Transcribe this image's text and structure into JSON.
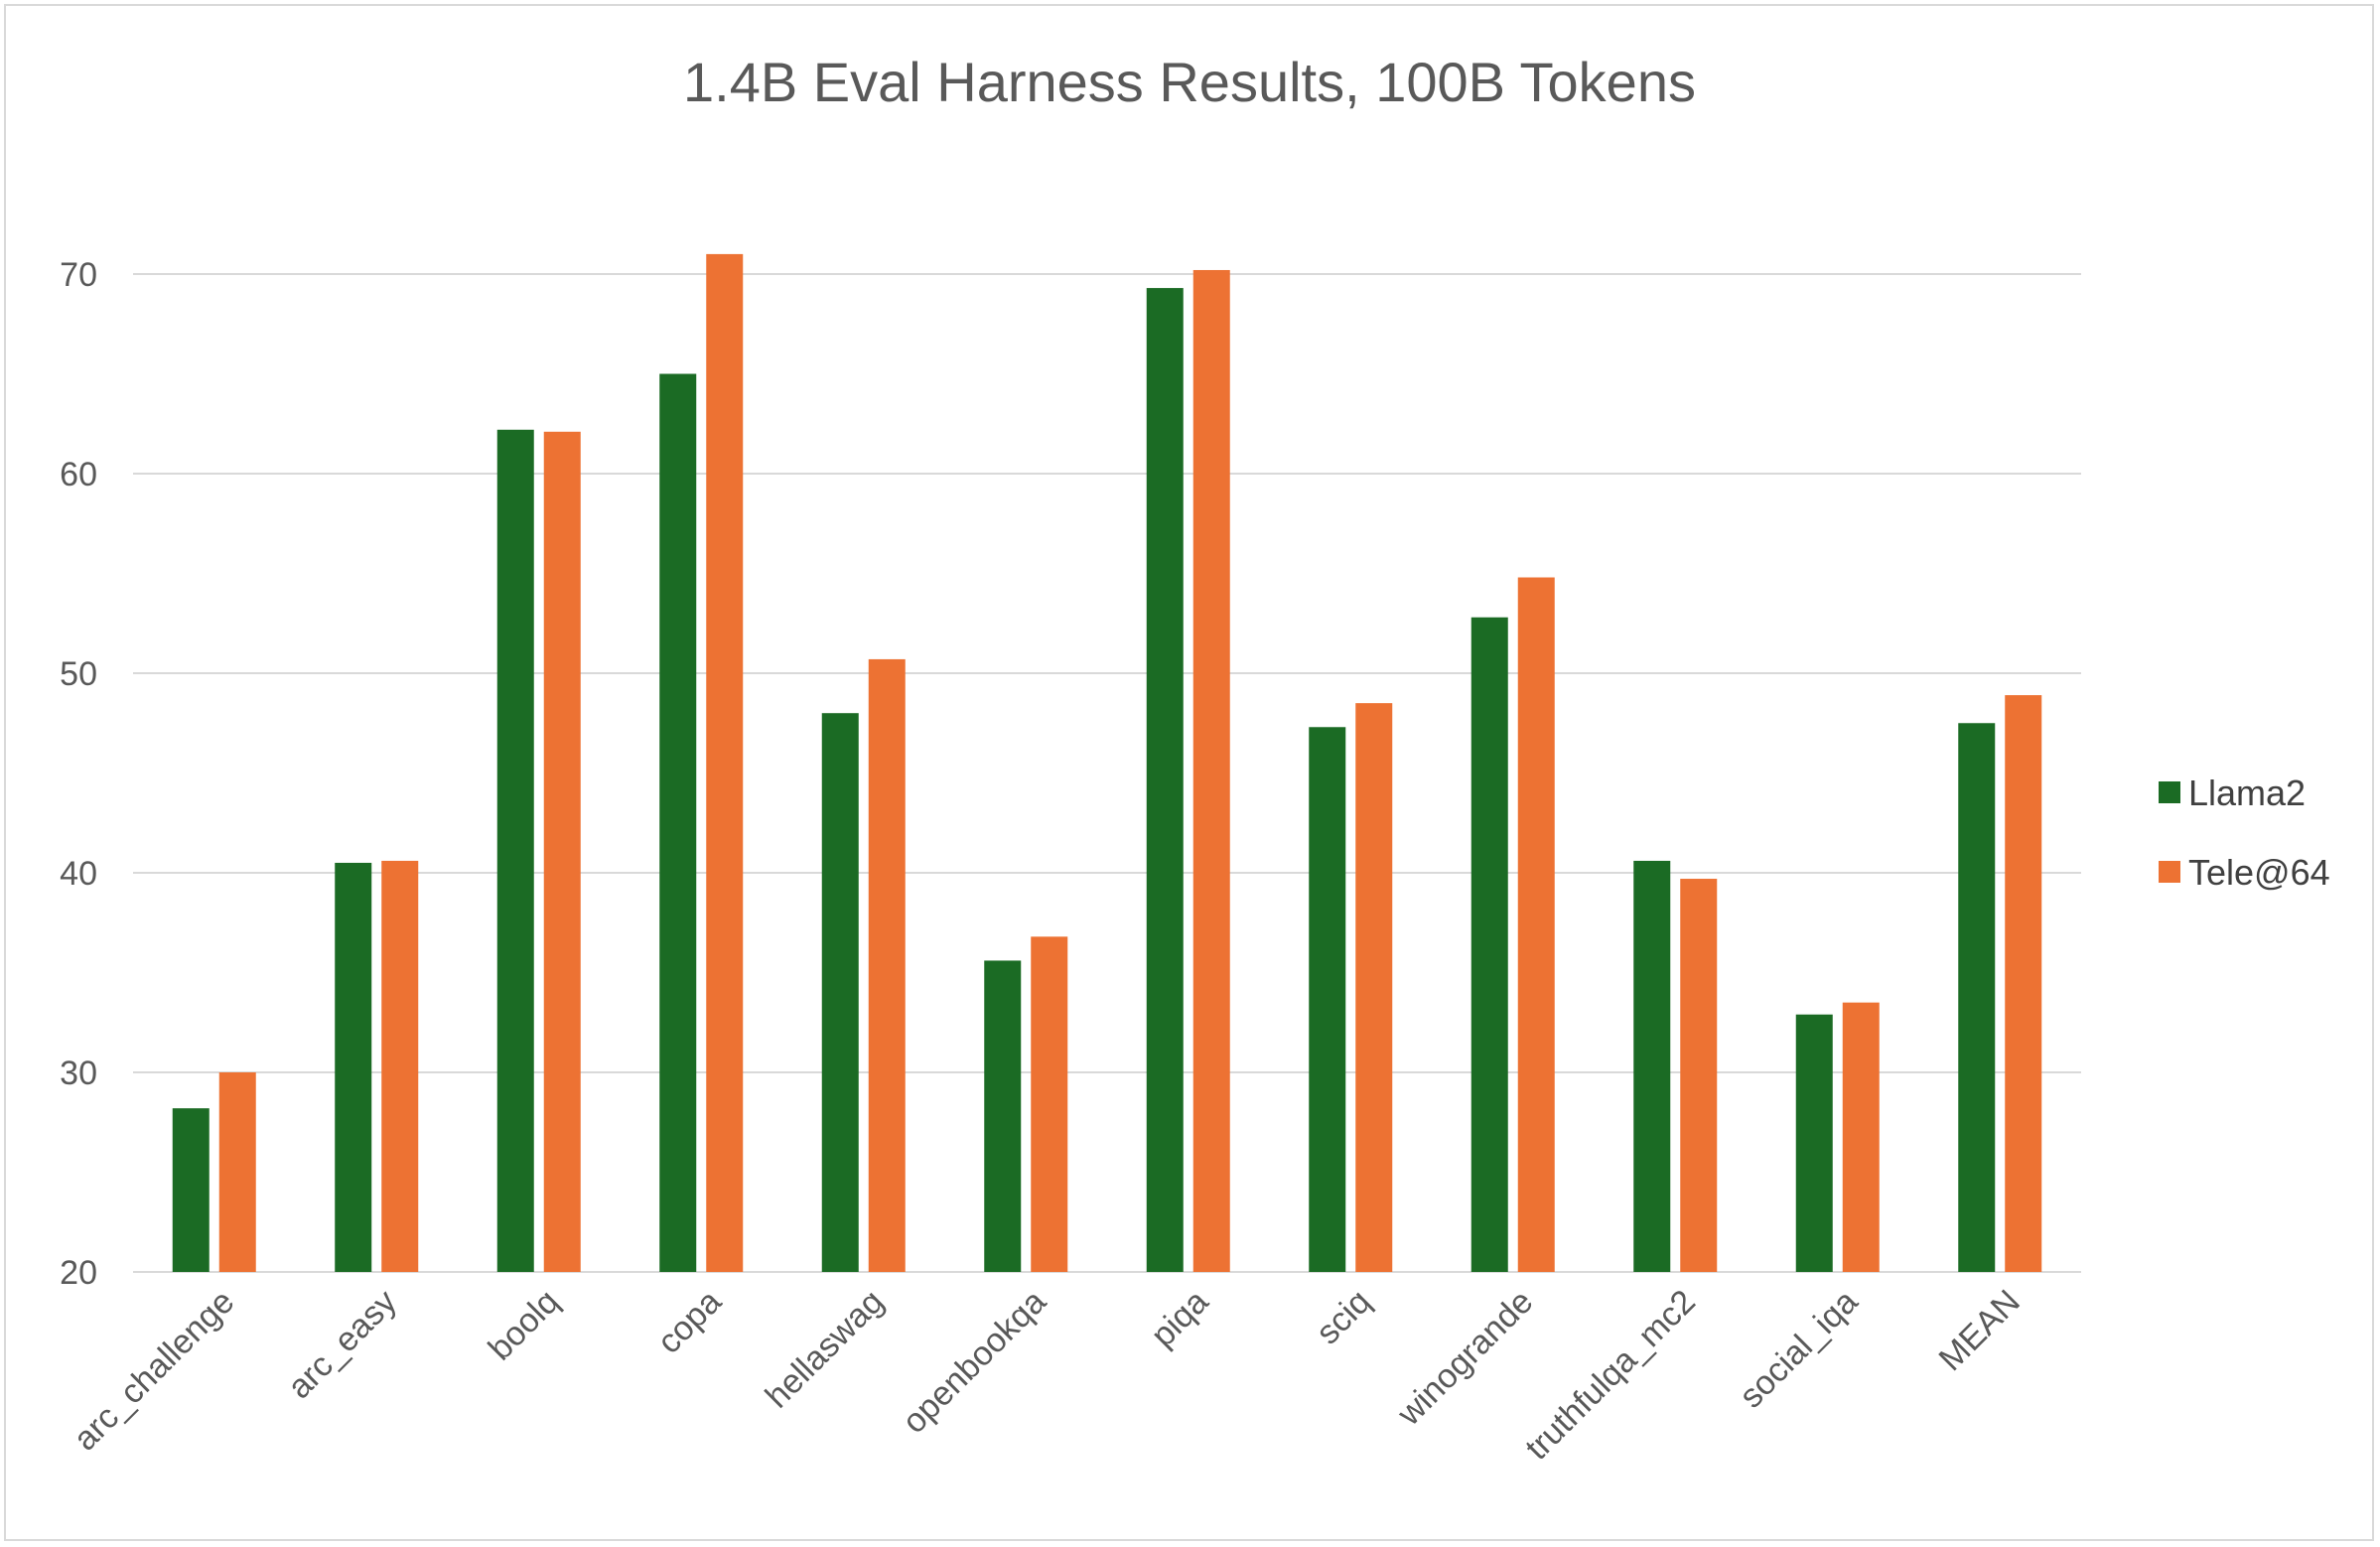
{
  "chart_data": {
    "type": "bar",
    "title": "1.4B Eval Harness Results, 100B Tokens",
    "xlabel": "",
    "ylabel": "",
    "ylim": [
      20,
      70
    ],
    "yticks": [
      20,
      30,
      40,
      50,
      60,
      70
    ],
    "grid": true,
    "legend_position": "right",
    "categories": [
      "arc_challenge",
      "arc_easy",
      "boolq",
      "copa",
      "hellaswag",
      "openbookqa",
      "piqa",
      "sciq",
      "winogrande",
      "truthfulqa_mc2",
      "social_iqa",
      "MEAN"
    ],
    "series": [
      {
        "name": "Llama2",
        "color": "#1b6b24",
        "values": [
          28.2,
          40.5,
          62.2,
          65.0,
          48.0,
          35.6,
          69.3,
          47.3,
          52.8,
          40.6,
          32.9,
          47.5
        ]
      },
      {
        "name": "Tele@64",
        "color": "#ed7233",
        "values": [
          30.0,
          40.6,
          62.1,
          71.0,
          50.7,
          36.8,
          70.2,
          48.5,
          54.8,
          39.7,
          33.5,
          48.9
        ]
      }
    ]
  }
}
